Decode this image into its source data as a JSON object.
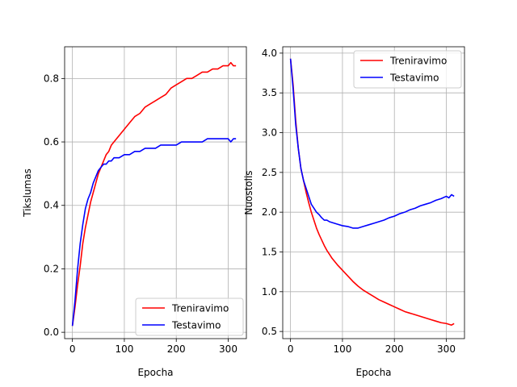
{
  "chart_data": [
    {
      "type": "line",
      "xlabel": "Epocha",
      "ylabel": "Tikslumas",
      "xlim": [
        -15,
        335
      ],
      "ylim": [
        -0.02,
        0.9
      ],
      "xticks": [
        0,
        100,
        200,
        300
      ],
      "xtick_labels": [
        "0",
        "100",
        "200",
        "300"
      ],
      "yticks": [
        0.0,
        0.2,
        0.4,
        0.6,
        0.8
      ],
      "ytick_labels": [
        "0.0",
        "0.2",
        "0.4",
        "0.6",
        "0.8"
      ],
      "grid": true,
      "legend_position": "lower right",
      "series": [
        {
          "name": "Treniravimo",
          "color": "#ff0000",
          "x": [
            0,
            5,
            10,
            15,
            20,
            25,
            30,
            35,
            40,
            45,
            50,
            55,
            60,
            65,
            70,
            75,
            80,
            90,
            100,
            110,
            120,
            130,
            140,
            150,
            160,
            170,
            180,
            190,
            200,
            210,
            220,
            230,
            240,
            250,
            260,
            270,
            280,
            290,
            300,
            305,
            310,
            315
          ],
          "y": [
            0.02,
            0.08,
            0.15,
            0.21,
            0.28,
            0.33,
            0.37,
            0.41,
            0.44,
            0.47,
            0.5,
            0.52,
            0.54,
            0.56,
            0.57,
            0.59,
            0.6,
            0.62,
            0.64,
            0.66,
            0.68,
            0.69,
            0.71,
            0.72,
            0.73,
            0.74,
            0.75,
            0.77,
            0.78,
            0.79,
            0.8,
            0.8,
            0.81,
            0.82,
            0.82,
            0.83,
            0.83,
            0.84,
            0.84,
            0.85,
            0.84,
            0.84
          ]
        },
        {
          "name": "Testavimo",
          "color": "#0000ff",
          "x": [
            0,
            5,
            10,
            15,
            20,
            25,
            30,
            35,
            40,
            45,
            50,
            55,
            60,
            65,
            70,
            75,
            80,
            90,
            100,
            110,
            120,
            130,
            140,
            150,
            160,
            170,
            180,
            190,
            200,
            210,
            220,
            230,
            240,
            250,
            260,
            270,
            280,
            290,
            300,
            305,
            310,
            315
          ],
          "y": [
            0.02,
            0.1,
            0.2,
            0.28,
            0.34,
            0.39,
            0.42,
            0.44,
            0.47,
            0.49,
            0.51,
            0.52,
            0.53,
            0.53,
            0.54,
            0.54,
            0.55,
            0.55,
            0.56,
            0.56,
            0.57,
            0.57,
            0.58,
            0.58,
            0.58,
            0.59,
            0.59,
            0.59,
            0.59,
            0.6,
            0.6,
            0.6,
            0.6,
            0.6,
            0.61,
            0.61,
            0.61,
            0.61,
            0.61,
            0.6,
            0.61,
            0.61
          ]
        }
      ]
    },
    {
      "type": "line",
      "xlabel": "Epocha",
      "ylabel": "Nuostolis",
      "xlim": [
        -15,
        335
      ],
      "ylim": [
        0.41,
        4.08
      ],
      "xticks": [
        0,
        100,
        200,
        300
      ],
      "xtick_labels": [
        "0",
        "100",
        "200",
        "300"
      ],
      "yticks": [
        0.5,
        1.0,
        1.5,
        2.0,
        2.5,
        3.0,
        3.5,
        4.0
      ],
      "ytick_labels": [
        "0.5",
        "1.0",
        "1.5",
        "2.0",
        "2.5",
        "3.0",
        "3.5",
        "4.0"
      ],
      "grid": true,
      "legend_position": "upper right",
      "series": [
        {
          "name": "Treniravimo",
          "color": "#ff0000",
          "x": [
            0,
            5,
            10,
            15,
            20,
            25,
            30,
            35,
            40,
            45,
            50,
            55,
            60,
            65,
            70,
            75,
            80,
            90,
            100,
            110,
            120,
            130,
            140,
            150,
            160,
            170,
            180,
            190,
            200,
            210,
            220,
            230,
            240,
            250,
            260,
            270,
            280,
            290,
            300,
            305,
            310,
            315
          ],
          "y": [
            3.93,
            3.6,
            3.15,
            2.8,
            2.55,
            2.4,
            2.25,
            2.12,
            2.0,
            1.9,
            1.8,
            1.72,
            1.65,
            1.58,
            1.52,
            1.47,
            1.42,
            1.34,
            1.27,
            1.2,
            1.13,
            1.07,
            1.02,
            0.98,
            0.94,
            0.9,
            0.87,
            0.84,
            0.81,
            0.78,
            0.75,
            0.73,
            0.71,
            0.69,
            0.67,
            0.65,
            0.63,
            0.61,
            0.6,
            0.59,
            0.58,
            0.6
          ]
        },
        {
          "name": "Testavimo",
          "color": "#0000ff",
          "x": [
            0,
            5,
            10,
            15,
            20,
            25,
            30,
            35,
            40,
            45,
            50,
            55,
            60,
            65,
            70,
            75,
            80,
            90,
            100,
            110,
            120,
            130,
            140,
            150,
            160,
            170,
            180,
            190,
            200,
            210,
            220,
            230,
            240,
            250,
            260,
            270,
            280,
            290,
            300,
            305,
            310,
            315
          ],
          "y": [
            3.93,
            3.55,
            3.1,
            2.8,
            2.55,
            2.4,
            2.3,
            2.2,
            2.1,
            2.05,
            2.0,
            1.97,
            1.93,
            1.9,
            1.9,
            1.88,
            1.87,
            1.85,
            1.83,
            1.82,
            1.8,
            1.8,
            1.82,
            1.84,
            1.86,
            1.88,
            1.9,
            1.93,
            1.95,
            1.98,
            2.0,
            2.03,
            2.05,
            2.08,
            2.1,
            2.12,
            2.15,
            2.17,
            2.2,
            2.18,
            2.22,
            2.2
          ]
        }
      ]
    }
  ]
}
